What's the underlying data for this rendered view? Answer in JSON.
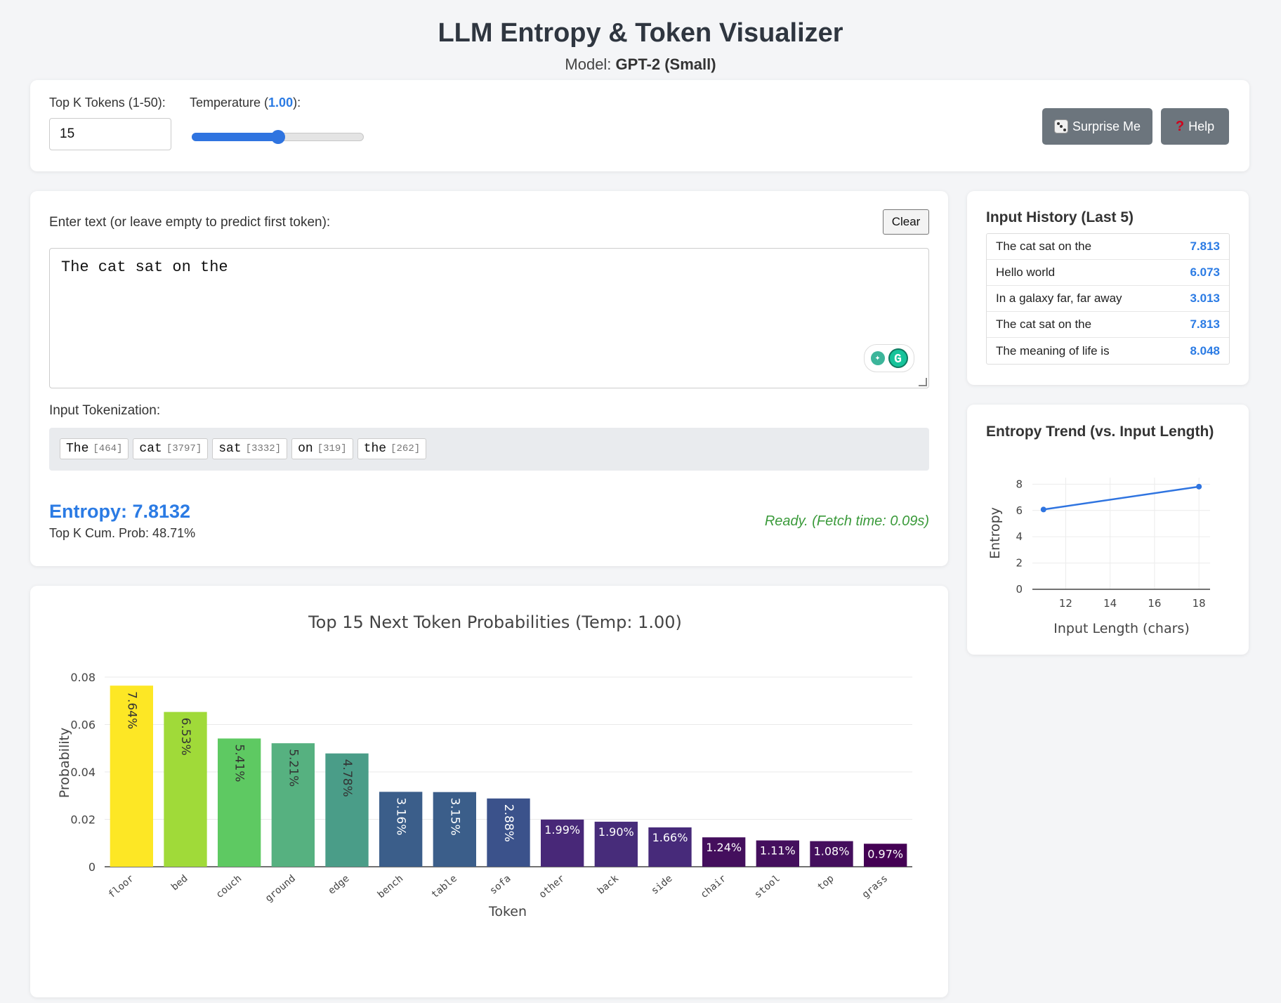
{
  "header": {
    "title": "LLM Entropy & Token Visualizer",
    "model_label": "Model: ",
    "model_name": "GPT-2 (Small)"
  },
  "controls": {
    "topk_label": "Top K Tokens (1-50):",
    "topk_value": "15",
    "temp_label_prefix": "Temperature (",
    "temp_value": "1.00",
    "temp_label_suffix": "):",
    "temp_slider_fraction": 0.5,
    "surprise_label": "Surprise Me",
    "help_label": "Help"
  },
  "input": {
    "prompt_label": "Enter text (or leave empty to predict first token):",
    "clear_label": "Clear",
    "text": "The cat sat on the",
    "tokenization_label": "Input Tokenization:",
    "tokens": [
      {
        "text": "The",
        "id": "[464]"
      },
      {
        "text": "cat",
        "id": "[3797]"
      },
      {
        "text": "sat",
        "id": "[3332]"
      },
      {
        "text": "on",
        "id": "[319]"
      },
      {
        "text": "the",
        "id": "[262]"
      }
    ],
    "entropy": "Entropy: 7.8132",
    "cum_prob": "Top K Cum. Prob: 48.71%",
    "status": "Ready. (Fetch time: 0.09s)"
  },
  "history": {
    "title": "Input History (Last 5)",
    "rows": [
      {
        "text": "The cat sat on the",
        "value": "7.813"
      },
      {
        "text": "Hello world",
        "value": "6.073"
      },
      {
        "text": "In a galaxy far, far away",
        "value": "3.013"
      },
      {
        "text": "The cat sat on the",
        "value": "7.813"
      },
      {
        "text": "The meaning of life is",
        "value": "8.048"
      }
    ]
  },
  "trend": {
    "title": "Entropy Trend (vs. Input Length)"
  },
  "chart_data": [
    {
      "type": "bar",
      "title": "Top 15 Next Token Probabilities (Temp: 1.00)",
      "xlabel": "Token",
      "ylabel": "Probability",
      "ylim": [
        0,
        0.08
      ],
      "yticks": [
        0,
        0.02,
        0.04,
        0.06,
        0.08
      ],
      "ytick_labels": [
        "0",
        "0.02",
        "0.04",
        "0.06",
        "0.08"
      ],
      "categories": [
        "floor",
        "bed",
        "couch",
        "ground",
        "edge",
        "bench",
        "table",
        "sofa",
        "other",
        "back",
        "side",
        "chair",
        "stool",
        "top",
        "grass"
      ],
      "values": [
        0.0764,
        0.0653,
        0.0541,
        0.0521,
        0.0478,
        0.0316,
        0.0315,
        0.0288,
        0.0199,
        0.019,
        0.0166,
        0.0124,
        0.0111,
        0.0108,
        0.0097
      ],
      "labels": [
        "7.64%",
        "6.53%",
        "5.41%",
        "5.21%",
        "4.78%",
        "3.16%",
        "3.15%",
        "2.88%",
        "1.99%",
        "1.90%",
        "1.66%",
        "1.24%",
        "1.11%",
        "1.08%",
        "0.97%"
      ],
      "colors": [
        "#fde725",
        "#a0da39",
        "#5ec962",
        "#56b180",
        "#4a9d88",
        "#3b5e8a",
        "#3b5e8a",
        "#3b528b",
        "#482878",
        "#472c7a",
        "#472a7a",
        "#440f5d",
        "#440f5d",
        "#440f5d",
        "#440154"
      ],
      "grid": true
    },
    {
      "type": "line",
      "xlabel": "Input Length (chars)",
      "ylabel": "Entropy",
      "x": [
        11,
        18
      ],
      "y": [
        6.073,
        7.813
      ],
      "xlim": [
        10.5,
        18.5
      ],
      "ylim": [
        0,
        8.5
      ],
      "xticks": [
        12,
        14,
        16,
        18
      ],
      "xtick_labels": [
        "12",
        "14",
        "16",
        "18"
      ],
      "yticks": [
        0,
        2,
        4,
        6,
        8
      ],
      "ytick_labels": [
        "0",
        "2",
        "4",
        "6",
        "8"
      ],
      "color": "#2f74e0",
      "grid": true
    }
  ]
}
